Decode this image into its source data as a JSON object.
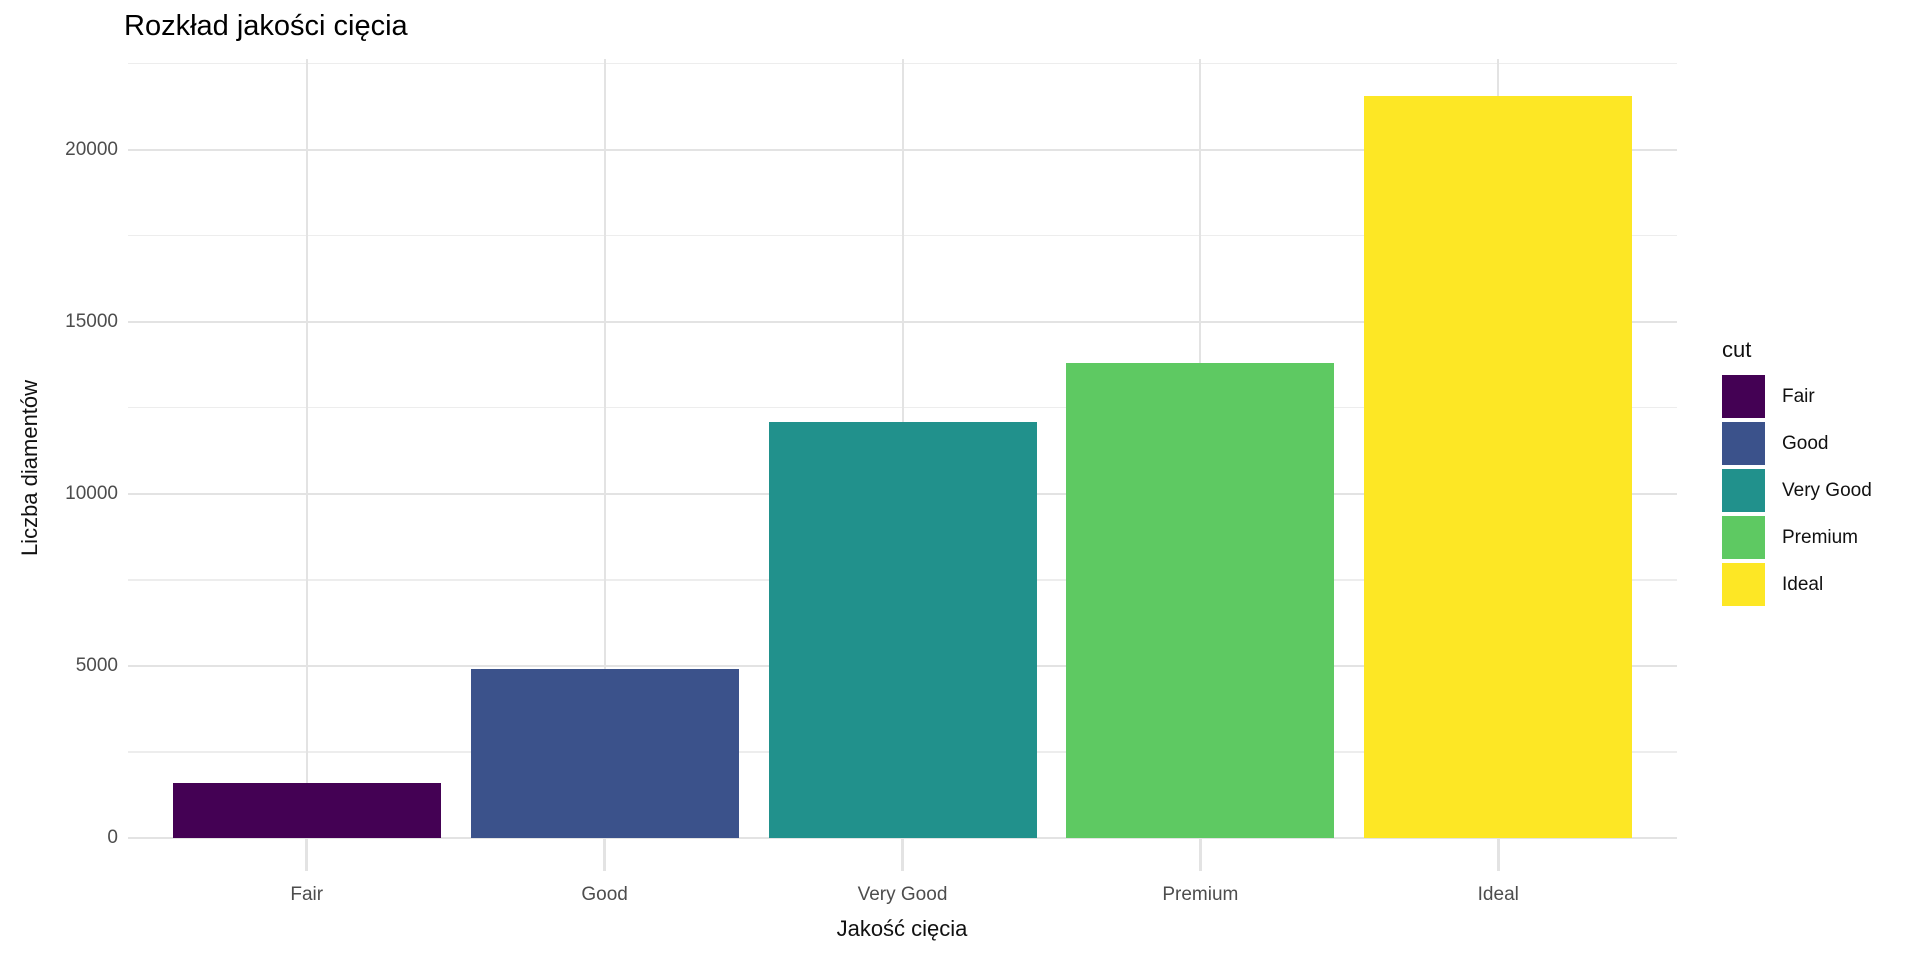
{
  "chart_data": {
    "type": "bar",
    "title": "Rozkład jakości cięcia",
    "xlabel": "Jakość cięcia",
    "ylabel": "Liczba diamentów",
    "categories": [
      "Fair",
      "Good",
      "Very Good",
      "Premium",
      "Ideal"
    ],
    "values": [
      1610,
      4906,
      12082,
      13791,
      21551
    ],
    "colors": [
      "#440154",
      "#3B528B",
      "#21918C",
      "#5EC962",
      "#FDE725"
    ],
    "yticks": [
      0,
      5000,
      10000,
      15000,
      20000
    ],
    "ylim": [
      0,
      22629
    ],
    "grid": "major and minor, light gray on white",
    "legend": {
      "title": "cut",
      "position": "right",
      "labels": [
        "Fair",
        "Good",
        "Very Good",
        "Premium",
        "Ideal"
      ]
    }
  },
  "style": {
    "background": "#FFFFFF",
    "grid_major": "#E3E3E3",
    "grid_minor": "#EDEDED",
    "tick_text": "#4D4D4D",
    "title_text": "#000000",
    "axis_title_text": "#111111"
  }
}
